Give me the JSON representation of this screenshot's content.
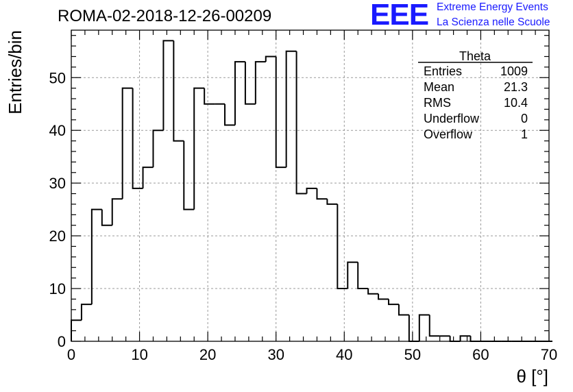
{
  "header": {
    "run_title": "ROMA-02-2018-12-26-00209",
    "logo_text": "EEE",
    "logo_line1": "Extreme Energy Events",
    "logo_line2": "La Scienza nelle Scuole",
    "logo_color": "#1a1aff"
  },
  "stats_box": {
    "title": "Theta",
    "rows": [
      {
        "label": "Entries",
        "value": "1009"
      },
      {
        "label": "Mean",
        "value": "21.3"
      },
      {
        "label": "RMS",
        "value": "10.4"
      },
      {
        "label": "Underflow",
        "value": "0"
      },
      {
        "label": "Overflow",
        "value": "1"
      }
    ]
  },
  "chart_data": {
    "type": "histogram",
    "title": "ROMA-02-2018-12-26-00209",
    "xlabel": "θ [°]",
    "ylabel": "Entries/bin",
    "xlim": [
      0,
      70
    ],
    "ylim": [
      0,
      59
    ],
    "grid": true,
    "bin_width": 1.5,
    "bin_start": 0,
    "x_ticks": [
      0,
      10,
      20,
      30,
      40,
      50,
      60,
      70
    ],
    "y_ticks": [
      0,
      10,
      20,
      30,
      40,
      50
    ],
    "values": [
      4,
      7,
      25,
      22,
      27,
      48,
      29,
      33,
      40,
      57,
      38,
      25,
      48,
      45,
      45,
      41,
      53,
      45,
      53,
      54,
      33,
      55,
      28,
      29,
      27,
      26,
      10,
      15,
      10,
      9,
      8,
      7,
      5,
      0,
      5,
      1,
      1,
      0,
      1,
      0,
      0,
      0,
      0,
      0,
      0,
      0,
      0
    ]
  }
}
